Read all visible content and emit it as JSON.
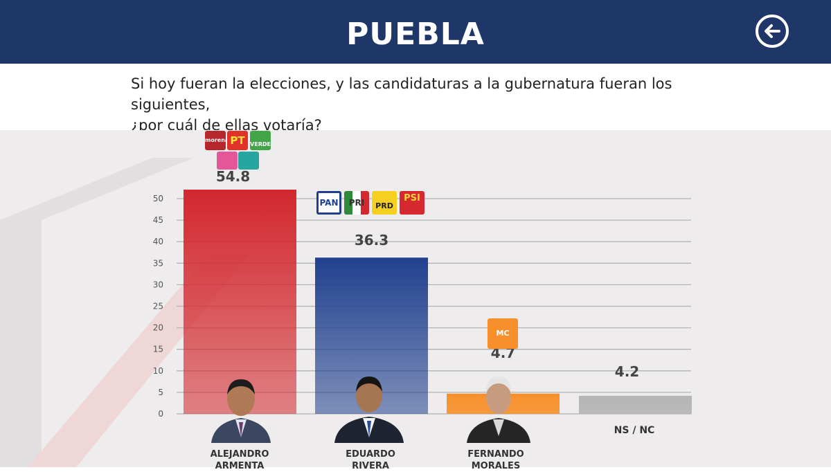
{
  "header": {
    "title": "PUEBLA"
  },
  "question": {
    "line1": "Si hoy fueran la elecciones, y las candidaturas a la gubernatura fueran los siguientes,",
    "line2": "¿por cuál de ellas votaría?"
  },
  "colors": {
    "header_bg": "#1f3669",
    "armenta": "#d2282e",
    "rivera": "#21418f",
    "morales": "#f7902a",
    "nsnc": "#b5b5b5"
  },
  "chart_data": {
    "type": "bar",
    "categories": [
      "ALEJANDRO ARMENTA",
      "EDUARDO RIVERA",
      "FERNANDO MORALES",
      "NS / NC"
    ],
    "values": [
      54.8,
      36.3,
      4.7,
      4.2
    ],
    "value_labels": [
      "54.8",
      "36.3",
      "4.7",
      "4.2"
    ],
    "yticks": [
      0,
      5,
      10,
      15,
      20,
      25,
      30,
      35,
      40,
      45,
      50
    ],
    "ylim": [
      0,
      50
    ],
    "grid": true,
    "title": "",
    "xlabel": "",
    "ylabel": ""
  },
  "candidates": [
    {
      "first": "ALEJANDRO",
      "last": "ARMENTA"
    },
    {
      "first": "EDUARDO",
      "last": "RIVERA"
    },
    {
      "first": "FERNANDO",
      "last": "MORALES"
    },
    {
      "first": "NS / NC",
      "last": ""
    }
  ],
  "parties": {
    "morena": "morena",
    "pt": "PT",
    "verde": "VERDE",
    "pan": "PAN",
    "pri": "PRI",
    "prd": "PRD",
    "psi": "PSI",
    "mc": "MC"
  },
  "icons": [
    "back-arrow-icon"
  ]
}
